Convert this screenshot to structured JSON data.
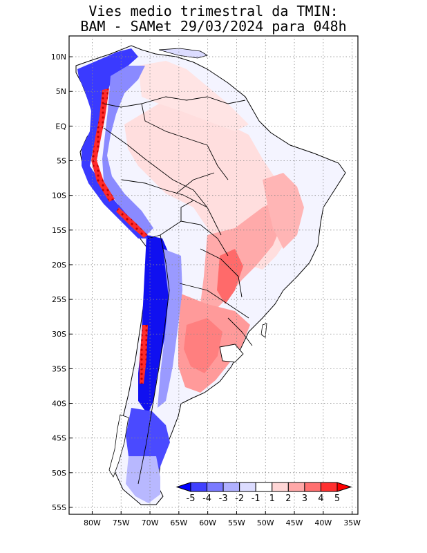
{
  "title_line1": "Vies medio trimestral da TMIN:",
  "title_line2": "BAM - SAMet 29/03/2024  para 048h",
  "map": {
    "region": "South America",
    "lon_range": [
      -84,
      -34
    ],
    "lat_range": [
      -56,
      13
    ],
    "gridlines": "dotted",
    "x_ticks": [
      "80W",
      "75W",
      "70W",
      "65W",
      "60W",
      "55W",
      "50W",
      "45W",
      "40W",
      "35W"
    ],
    "y_ticks": [
      "10N",
      "5N",
      "EQ",
      "5S",
      "10S",
      "15S",
      "20S",
      "25S",
      "30S",
      "35S",
      "40S",
      "45S",
      "50S",
      "55S"
    ]
  },
  "colorbar": {
    "labels": [
      "-5",
      "-4",
      "-3",
      "-2",
      "-1",
      "1",
      "2",
      "3",
      "4",
      "5"
    ],
    "colors": [
      "#0000ff",
      "#4040ff",
      "#7a7aff",
      "#b0b0ff",
      "#dcdcff",
      "#ffffff",
      "#ffd6d6",
      "#ffa8a8",
      "#ff7070",
      "#ff3030",
      "#ff0000"
    ],
    "position": "bottom-right inside map"
  }
}
